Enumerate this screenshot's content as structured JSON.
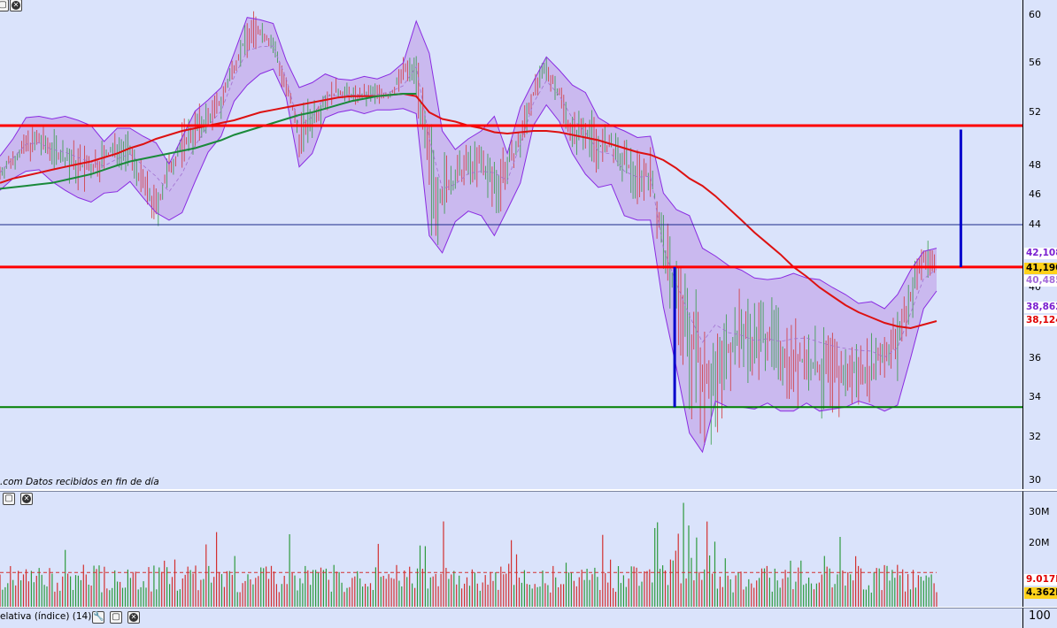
{
  "price_panel": {
    "caption": ".com  Datos recibidos en fin de día",
    "scale_ticks": [
      "60",
      "56",
      "52",
      "48",
      "46",
      "44",
      "40",
      "36",
      "34",
      "32",
      "30"
    ],
    "tags": [
      {
        "text": "42,108",
        "color": "#7a1fd0",
        "bg": "#ffffff"
      },
      {
        "text": "41,190",
        "color": "#000000",
        "bg": "#ffd21a"
      },
      {
        "text": "40,485",
        "color": "#a36ad9",
        "bg": "#ffffff"
      },
      {
        "text": "38,862",
        "color": "#7a1fd0",
        "bg": "#ffffff"
      },
      {
        "text": "38,124",
        "color": "#e00000",
        "bg": "#ffffff"
      }
    ]
  },
  "volume_panel": {
    "scale_ticks": [
      "30M",
      "20M"
    ],
    "tags": [
      {
        "text": "9.017K",
        "color": "#e00000",
        "bg": "#ffffff"
      },
      {
        "text": "4.362K",
        "color": "#000000",
        "bg": "#ffd21a"
      }
    ]
  },
  "rsi_panel": {
    "title": "elativa (índice) (14)",
    "scale_ticks": [
      "100"
    ]
  },
  "colors": {
    "background": "#dae3fb",
    "band_fill": "#c9b6ee",
    "band_line": "#8a2be2",
    "up_bar": "#2e9a3e",
    "down_bar": "#d23030",
    "resistance": "#ff0000",
    "support": "#008000",
    "ma_long": "#dd1111",
    "ma_mid": "#1a8a3a",
    "measure": "#0000cc"
  },
  "chart_data": [
    {
      "type": "line",
      "panel": "price",
      "ylim": [
        29.5,
        61
      ],
      "y_ticks": [
        60,
        56,
        52,
        48,
        46,
        44,
        40,
        36,
        34,
        32,
        30
      ],
      "series": [
        {
          "role": "close",
          "values": [
            47.5,
            48.5,
            49.5,
            49.8,
            49.3,
            48.6,
            48.0,
            47.7,
            48.6,
            49.4,
            48.9,
            46.7,
            45.0,
            47.7,
            49.6,
            50.7,
            51.5,
            52.8,
            55.8,
            58.2,
            58.7,
            57.5,
            54.0,
            50.3,
            51.6,
            53.1,
            53.7,
            53.4,
            53.3,
            53.6,
            53.3,
            55.3,
            55.5,
            47.3,
            46.2,
            47.1,
            48.1,
            48.2,
            46.6,
            48.0,
            49.8,
            53.6,
            55.5,
            53.6,
            50.3,
            50.9,
            49.4,
            49.4,
            48.1,
            47.3,
            47.5,
            42.6,
            39.6,
            37.0,
            35.6,
            34.7,
            36.6,
            37.5,
            37.1,
            37.4,
            36.5,
            35.8,
            35.9,
            35.3,
            35.2,
            35.0,
            35.4,
            35.6,
            36.4,
            36.9,
            39.5,
            41.9,
            41.5
          ]
        },
        {
          "role": "upper_band",
          "values": [
            48.7,
            50.0,
            51.6,
            51.7,
            51.5,
            51.7,
            51.4,
            51.0,
            49.8,
            50.8,
            50.8,
            50.2,
            49.7,
            48.1,
            50.1,
            52.1,
            53.0,
            54.0,
            56.8,
            59.8,
            59.6,
            59.3,
            56.2,
            54.0,
            54.4,
            55.1,
            54.7,
            54.6,
            54.9,
            54.7,
            55.1,
            56.0,
            59.5,
            56.8,
            50.6,
            49.2,
            50.0,
            50.6,
            51.7,
            48.9,
            52.4,
            54.5,
            56.5,
            55.4,
            54.2,
            53.6,
            51.6,
            51.0,
            50.6,
            50.1,
            50.2,
            46.1,
            45.0,
            44.6,
            42.5,
            42.0,
            41.4,
            41.1,
            40.6,
            40.5,
            40.6,
            40.9,
            40.6,
            40.5,
            40.0,
            39.6,
            39.1,
            39.2,
            38.8,
            39.6,
            41.1,
            42.3,
            42.5
          ]
        },
        {
          "role": "lower_band",
          "values": [
            46.3,
            47.1,
            47.6,
            47.7,
            46.9,
            46.3,
            45.8,
            45.5,
            46.1,
            46.2,
            46.9,
            45.8,
            44.8,
            44.3,
            44.8,
            46.9,
            49.0,
            50.2,
            52.9,
            54.2,
            55.1,
            55.5,
            53.2,
            47.9,
            48.9,
            51.6,
            52.0,
            52.2,
            51.9,
            52.2,
            52.2,
            52.3,
            51.9,
            43.3,
            42.2,
            44.2,
            44.9,
            44.6,
            43.3,
            45.0,
            46.8,
            51.0,
            52.6,
            51.3,
            48.9,
            47.4,
            46.5,
            46.7,
            44.6,
            44.3,
            44.3,
            38.9,
            35.5,
            32.2,
            31.3,
            33.8,
            33.5,
            33.5,
            33.4,
            33.7,
            33.3,
            33.3,
            33.7,
            33.3,
            33.4,
            33.5,
            33.8,
            33.6,
            33.3,
            33.6,
            36.0,
            38.8,
            39.8
          ]
        },
        {
          "role": "moving_average_long",
          "values": [
            46.8,
            47.1,
            47.3,
            47.5,
            47.7,
            47.9,
            48.1,
            48.3,
            48.6,
            48.9,
            49.3,
            49.6,
            50.0,
            50.3,
            50.6,
            50.8,
            51.0,
            51.2,
            51.4,
            51.7,
            52.0,
            52.2,
            52.4,
            52.6,
            52.8,
            53.0,
            53.2,
            53.3,
            53.3,
            53.3,
            53.4,
            53.5,
            53.3,
            52.0,
            51.5,
            51.3,
            51.0,
            50.8,
            50.5,
            50.4,
            50.5,
            50.6,
            50.6,
            50.5,
            50.3,
            50.1,
            49.9,
            49.6,
            49.3,
            49.0,
            48.8,
            48.4,
            47.8,
            47.1,
            46.6,
            45.9,
            45.1,
            44.3,
            43.5,
            42.8,
            42.1,
            41.3,
            40.7,
            40.0,
            39.5,
            39.0,
            38.6,
            38.3,
            38.0,
            37.8,
            37.7,
            37.9,
            38.1
          ]
        },
        {
          "role": "moving_average_mid",
          "values": [
            46.4,
            46.5,
            46.6,
            46.7,
            46.8,
            47.0,
            47.2,
            47.4,
            47.7,
            48.0,
            48.3,
            48.5,
            48.7,
            48.9,
            49.1,
            49.3,
            49.6,
            49.9,
            50.3,
            50.6,
            50.9,
            51.2,
            51.5,
            51.8,
            52.0,
            52.3,
            52.6,
            52.9,
            53.1,
            53.3,
            53.4,
            53.5,
            53.5
          ]
        }
      ],
      "horizontal_lines": [
        {
          "name": "resistance",
          "value": 51.0
        },
        {
          "name": "level",
          "value": 44.0
        },
        {
          "name": "breakout",
          "value": 41.3
        },
        {
          "name": "support",
          "value": 33.5
        }
      ],
      "measure_lines": [
        {
          "x_index": 52,
          "from": 33.5,
          "to": 41.3
        },
        {
          "x_index": 74,
          "from": 41.3,
          "to": 50.7
        }
      ]
    },
    {
      "type": "bar",
      "panel": "volume",
      "ylim": [
        0,
        36000000
      ],
      "y_ticks": [
        30000000,
        20000000
      ],
      "average": 10500000
    }
  ]
}
